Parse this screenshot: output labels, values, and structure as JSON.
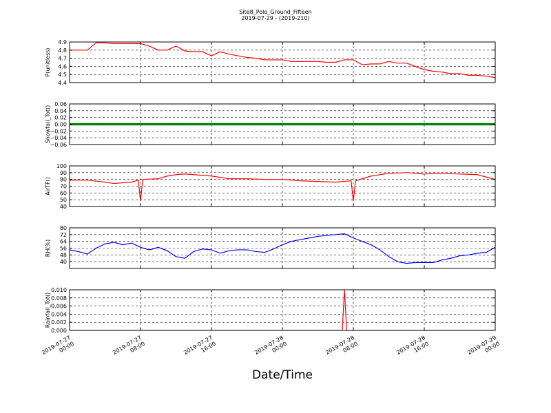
{
  "figure": {
    "title": "Site8_Polo_Ground_Fifteen",
    "subtitle": "2019-07-29 - (2019-210)",
    "xlabel": "Date/Time",
    "x_tick_labels": [
      [
        "2019-07-27",
        "00:00"
      ],
      [
        "2019-07-27",
        "08:00"
      ],
      [
        "2019-07-27",
        "16:00"
      ],
      [
        "2019-07-28",
        "00:00"
      ],
      [
        "2019-07-28",
        "08:00"
      ],
      [
        "2019-07-28",
        "16:00"
      ],
      [
        "2019-07-29",
        "00:00"
      ]
    ],
    "grid": true
  },
  "chart_data": [
    {
      "type": "line",
      "ylabel": "P(unitless)",
      "color": "#ff0000",
      "ylim": [
        4.4,
        4.9
      ],
      "yticks": [
        4.4,
        4.5,
        4.6,
        4.7,
        4.8,
        4.9
      ],
      "ytick_labels": [
        "4.4",
        "4.5",
        "4.6",
        "4.7",
        "4.8",
        "4.9"
      ],
      "xlim": [
        "2019-07-27 00:00",
        "2019-07-29 00:00"
      ],
      "x": [
        "2019-07-27 00:00",
        "2019-07-27 01:00",
        "2019-07-27 02:00",
        "2019-07-27 03:00",
        "2019-07-27 04:00",
        "2019-07-27 05:00",
        "2019-07-27 06:00",
        "2019-07-27 07:00",
        "2019-07-27 08:00",
        "2019-07-27 09:00",
        "2019-07-27 10:00",
        "2019-07-27 11:00",
        "2019-07-27 12:00",
        "2019-07-27 13:00",
        "2019-07-27 14:00",
        "2019-07-27 15:00",
        "2019-07-27 16:00",
        "2019-07-27 17:00",
        "2019-07-27 18:00",
        "2019-07-27 19:00",
        "2019-07-27 20:00",
        "2019-07-27 21:00",
        "2019-07-27 22:00",
        "2019-07-27 23:00",
        "2019-07-28 00:00",
        "2019-07-28 01:00",
        "2019-07-28 02:00",
        "2019-07-28 03:00",
        "2019-07-28 04:00",
        "2019-07-28 05:00",
        "2019-07-28 06:00",
        "2019-07-28 07:00",
        "2019-07-28 08:00",
        "2019-07-28 09:00",
        "2019-07-28 10:00",
        "2019-07-28 11:00",
        "2019-07-28 12:00",
        "2019-07-28 13:00",
        "2019-07-28 14:00",
        "2019-07-28 15:00",
        "2019-07-28 16:00",
        "2019-07-28 17:00",
        "2019-07-28 18:00",
        "2019-07-28 19:00",
        "2019-07-28 20:00",
        "2019-07-28 21:00",
        "2019-07-28 22:00",
        "2019-07-28 23:00",
        "2019-07-29 00:00"
      ],
      "values": [
        4.8,
        4.8,
        4.8,
        4.89,
        4.89,
        4.88,
        4.88,
        4.88,
        4.88,
        4.85,
        4.8,
        4.8,
        4.85,
        4.79,
        4.78,
        4.78,
        4.73,
        4.78,
        4.75,
        4.73,
        4.71,
        4.7,
        4.68,
        4.68,
        4.68,
        4.66,
        4.66,
        4.66,
        4.66,
        4.65,
        4.65,
        4.68,
        4.68,
        4.62,
        4.63,
        4.63,
        4.66,
        4.64,
        4.64,
        4.6,
        4.56,
        4.54,
        4.53,
        4.51,
        4.51,
        4.49,
        4.49,
        4.48,
        4.46
      ]
    },
    {
      "type": "scatter",
      "ylabel": "Snowfall_Tot()",
      "color": "#008000",
      "ylim": [
        -0.06,
        0.06
      ],
      "yticks": [
        -0.06,
        -0.04,
        -0.02,
        0.0,
        0.02,
        0.04,
        0.06
      ],
      "ytick_labels": [
        "−0.06",
        "−0.04",
        "−0.02",
        "0.00",
        "0.02",
        "0.04",
        "0.06"
      ],
      "xlim": [
        "2019-07-27 00:00",
        "2019-07-29 00:00"
      ],
      "x_range": [
        "2019-07-27 00:00",
        "2019-07-29 00:00"
      ],
      "constant_value": 0.0
    },
    {
      "type": "line",
      "ylabel": "AirTF()",
      "color": "#ff0000",
      "ylim": [
        40,
        100
      ],
      "yticks": [
        40,
        50,
        60,
        70,
        80,
        90,
        100
      ],
      "ytick_labels": [
        "40",
        "50",
        "60",
        "70",
        "80",
        "90",
        "100"
      ],
      "xlim": [
        "2019-07-27 00:00",
        "2019-07-29 00:00"
      ],
      "x": [
        "2019-07-27 00:00",
        "2019-07-27 02:00",
        "2019-07-27 04:00",
        "2019-07-27 05:00",
        "2019-07-27 06:00",
        "2019-07-27 07:00",
        "2019-07-27 07:45",
        "2019-07-27 08:00",
        "2019-07-27 08:15",
        "2019-07-27 10:00",
        "2019-07-27 11:00",
        "2019-07-27 12:00",
        "2019-07-27 13:00",
        "2019-07-27 14:00",
        "2019-07-27 15:00",
        "2019-07-27 16:00",
        "2019-07-27 17:00",
        "2019-07-27 18:00",
        "2019-07-27 20:00",
        "2019-07-27 22:00",
        "2019-07-28 00:00",
        "2019-07-28 02:00",
        "2019-07-28 04:00",
        "2019-07-28 06:00",
        "2019-07-28 07:45",
        "2019-07-28 08:00",
        "2019-07-28 08:15",
        "2019-07-28 10:00",
        "2019-07-28 12:00",
        "2019-07-28 14:00",
        "2019-07-28 16:00",
        "2019-07-28 18:00",
        "2019-07-28 20:00",
        "2019-07-28 22:00",
        "2019-07-29 00:00"
      ],
      "values": [
        79,
        79,
        76,
        74,
        75,
        76,
        79,
        48,
        80,
        81,
        85,
        87,
        88,
        87,
        86,
        85,
        83,
        81,
        81,
        80,
        80,
        78,
        77,
        76,
        78,
        48,
        78,
        85,
        89,
        90,
        88,
        89,
        88,
        87,
        80
      ]
    },
    {
      "type": "line",
      "ylabel": "RH(%)",
      "color": "#0000ff",
      "ylim": [
        32,
        80
      ],
      "yticks": [
        40,
        48,
        56,
        64,
        72,
        80
      ],
      "ytick_labels": [
        "40",
        "48",
        "56",
        "64",
        "72",
        "80"
      ],
      "xlim": [
        "2019-07-27 00:00",
        "2019-07-29 00:00"
      ],
      "x": [
        "2019-07-27 00:00",
        "2019-07-27 01:00",
        "2019-07-27 02:00",
        "2019-07-27 03:00",
        "2019-07-27 04:00",
        "2019-07-27 05:00",
        "2019-07-27 06:00",
        "2019-07-27 07:00",
        "2019-07-27 08:00",
        "2019-07-27 09:00",
        "2019-07-27 10:00",
        "2019-07-27 11:00",
        "2019-07-27 12:00",
        "2019-07-27 13:00",
        "2019-07-27 14:00",
        "2019-07-27 15:00",
        "2019-07-27 16:00",
        "2019-07-27 17:00",
        "2019-07-27 18:00",
        "2019-07-27 19:00",
        "2019-07-27 20:00",
        "2019-07-27 21:00",
        "2019-07-27 22:00",
        "2019-07-27 23:00",
        "2019-07-28 00:00",
        "2019-07-28 01:00",
        "2019-07-28 02:00",
        "2019-07-28 03:00",
        "2019-07-28 04:00",
        "2019-07-28 05:00",
        "2019-07-28 06:00",
        "2019-07-28 07:00",
        "2019-07-28 08:00",
        "2019-07-28 09:00",
        "2019-07-28 10:00",
        "2019-07-28 11:00",
        "2019-07-28 12:00",
        "2019-07-28 13:00",
        "2019-07-28 14:00",
        "2019-07-28 15:00",
        "2019-07-28 16:00",
        "2019-07-28 17:00",
        "2019-07-28 18:00",
        "2019-07-28 19:00",
        "2019-07-28 20:00",
        "2019-07-28 21:00",
        "2019-07-28 22:00",
        "2019-07-28 23:00",
        "2019-07-29 00:00"
      ],
      "values": [
        54,
        52,
        49,
        56,
        61,
        63,
        60,
        62,
        57,
        54,
        57,
        53,
        46,
        44,
        52,
        55,
        54,
        50,
        53,
        54,
        54,
        52,
        51,
        55,
        60,
        64,
        66,
        68,
        70,
        71,
        72,
        73,
        68,
        64,
        60,
        54,
        46,
        40,
        38,
        39,
        39,
        39,
        42,
        44,
        47,
        48,
        50,
        51,
        57
      ]
    },
    {
      "type": "line",
      "ylabel": "Rainfall_Tot()",
      "color": "#ff0000",
      "ylim": [
        0.0,
        0.01
      ],
      "yticks": [
        0.0,
        0.002,
        0.004,
        0.006,
        0.008,
        0.01
      ],
      "ytick_labels": [
        "0.000",
        "0.002",
        "0.004",
        "0.006",
        "0.008",
        "0.010"
      ],
      "xlim": [
        "2019-07-27 00:00",
        "2019-07-29 00:00"
      ],
      "x": [
        "2019-07-27 00:00",
        "2019-07-28 06:45",
        "2019-07-28 07:00",
        "2019-07-28 07:15",
        "2019-07-29 00:00"
      ],
      "values": [
        0.0,
        0.0,
        0.01,
        0.0,
        0.0
      ]
    }
  ]
}
